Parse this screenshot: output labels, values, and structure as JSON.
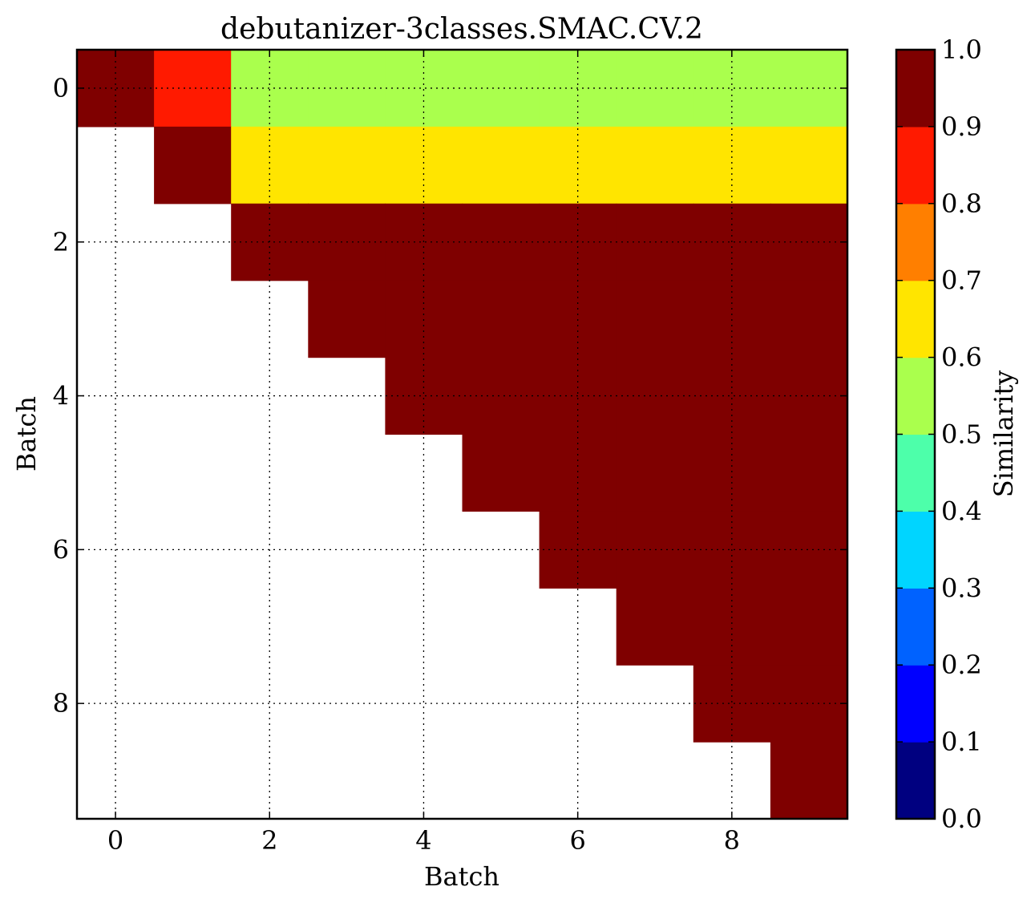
{
  "chart_data": {
    "type": "heatmap",
    "title": "debutanizer-3classes.SMAC.CV.2",
    "xlabel": "Batch",
    "ylabel": "Batch",
    "x_ticks": [
      "0",
      "2",
      "4",
      "6",
      "8"
    ],
    "y_ticks": [
      "0",
      "2",
      "4",
      "6",
      "8"
    ],
    "colorbar": {
      "label": "Similarity",
      "range": [
        0.0,
        1.0
      ],
      "ticks": [
        "0.0",
        "0.1",
        "0.2",
        "0.3",
        "0.4",
        "0.5",
        "0.6",
        "0.7",
        "0.8",
        "0.9",
        "1.0"
      ],
      "colors": [
        "#000080",
        "#0000ff",
        "#0062ff",
        "#00d5ff",
        "#4dffaa",
        "#aaff4d",
        "#ffe500",
        "#ff7f00",
        "#ff1a00",
        "#7f0000"
      ]
    },
    "grid": true,
    "values": [
      [
        1.0,
        0.85,
        0.55,
        0.55,
        0.55,
        0.55,
        0.55,
        0.55,
        0.55,
        0.55
      ],
      [
        null,
        1.0,
        0.65,
        0.65,
        0.65,
        0.65,
        0.65,
        0.65,
        0.65,
        0.65
      ],
      [
        null,
        null,
        1.0,
        1.0,
        1.0,
        1.0,
        1.0,
        1.0,
        1.0,
        1.0
      ],
      [
        null,
        null,
        null,
        1.0,
        1.0,
        1.0,
        1.0,
        1.0,
        1.0,
        1.0
      ],
      [
        null,
        null,
        null,
        null,
        1.0,
        1.0,
        1.0,
        1.0,
        1.0,
        1.0
      ],
      [
        null,
        null,
        null,
        null,
        null,
        1.0,
        1.0,
        1.0,
        1.0,
        1.0
      ],
      [
        null,
        null,
        null,
        null,
        null,
        null,
        1.0,
        1.0,
        1.0,
        1.0
      ],
      [
        null,
        null,
        null,
        null,
        null,
        null,
        null,
        1.0,
        1.0,
        1.0
      ],
      [
        null,
        null,
        null,
        null,
        null,
        null,
        null,
        null,
        1.0,
        1.0
      ],
      [
        null,
        null,
        null,
        null,
        null,
        null,
        null,
        null,
        null,
        1.0
      ]
    ]
  }
}
